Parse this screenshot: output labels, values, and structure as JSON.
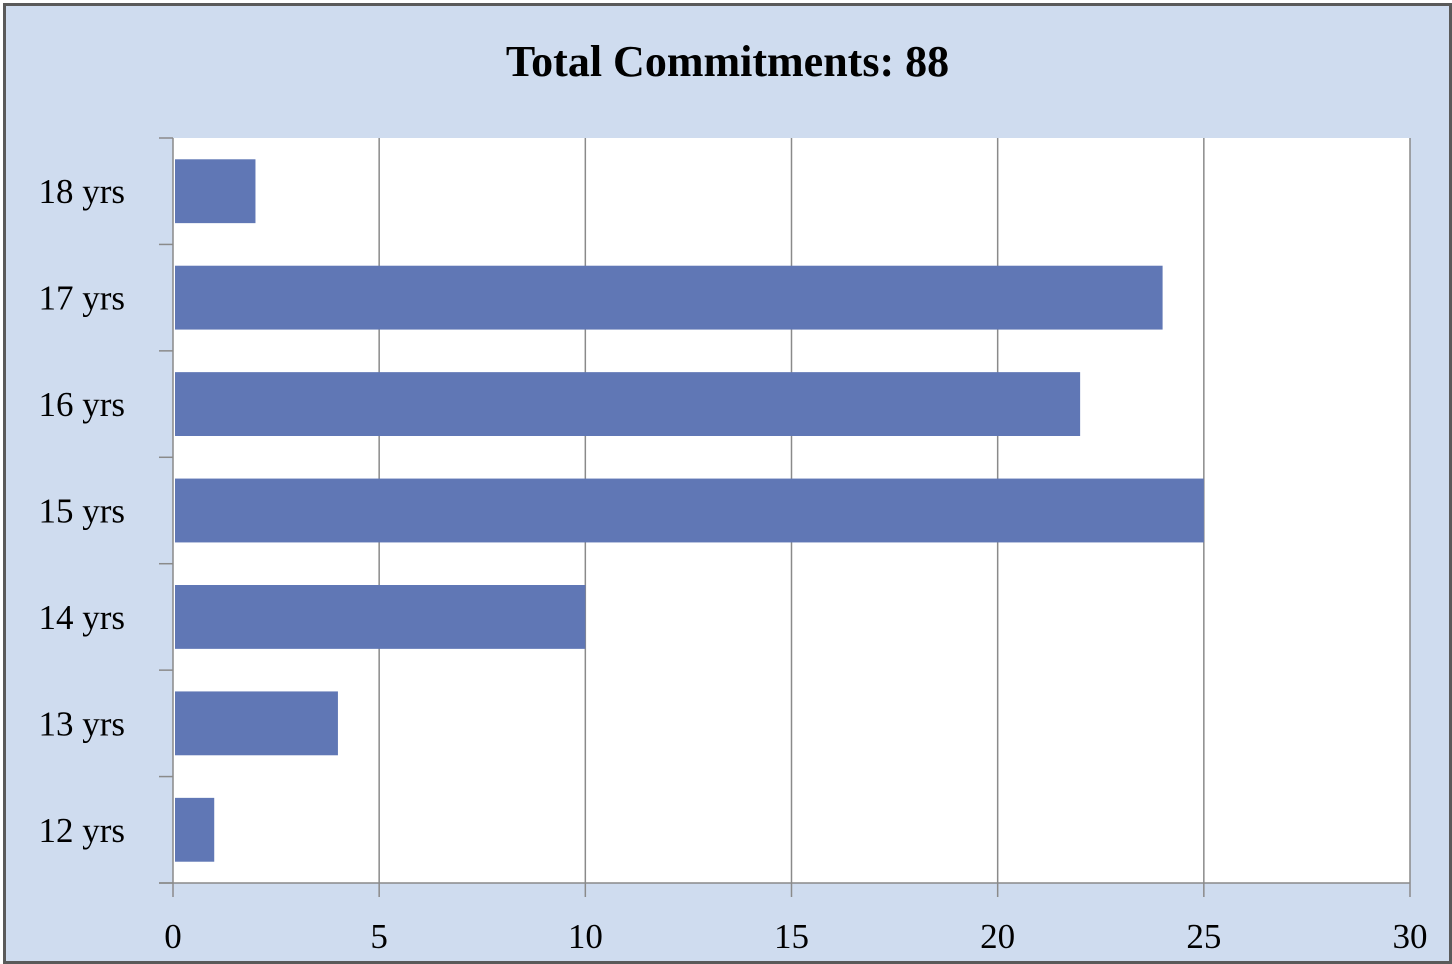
{
  "chart_data": {
    "type": "bar",
    "orientation": "horizontal",
    "title": "Total Commitments: 88",
    "categories": [
      "18 yrs",
      "17 yrs",
      "16 yrs",
      "15 yrs",
      "14 yrs",
      "13 yrs",
      "12 yrs"
    ],
    "values": [
      2,
      24,
      22,
      25,
      10,
      4,
      1
    ],
    "xlim": [
      0,
      30
    ],
    "x_ticks": [
      0,
      5,
      10,
      15,
      20,
      25,
      30
    ],
    "grid": "vertical",
    "legend": "none",
    "colors": {
      "bar": "#6077b5",
      "frame_background": "#cfdcef",
      "plot_background": "#ffffff",
      "gridline": "#8a8a8a",
      "border": "#5a5a5a"
    }
  }
}
